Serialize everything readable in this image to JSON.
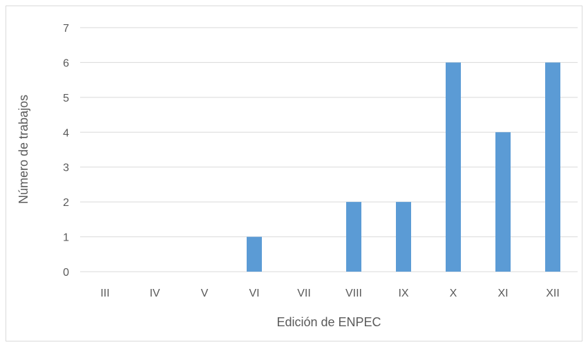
{
  "chart_data": {
    "type": "bar",
    "title": "",
    "xlabel": "Edición de ENPEC",
    "ylabel": "Número de trabajos",
    "categories": [
      "III",
      "IV",
      "V",
      "VI",
      "VII",
      "VIII",
      "IX",
      "X",
      "XI",
      "XII"
    ],
    "values": [
      0,
      0,
      0,
      1,
      0,
      2,
      2,
      6,
      4,
      6
    ],
    "ylim": [
      0,
      7
    ],
    "yticks": [
      "0",
      "1",
      "2",
      "3",
      "4",
      "5",
      "6",
      "7"
    ],
    "grid": true,
    "legend": "none",
    "bar_color": "#5b9bd5",
    "grid_color": "#d9d9d9",
    "text_color": "#595959"
  }
}
